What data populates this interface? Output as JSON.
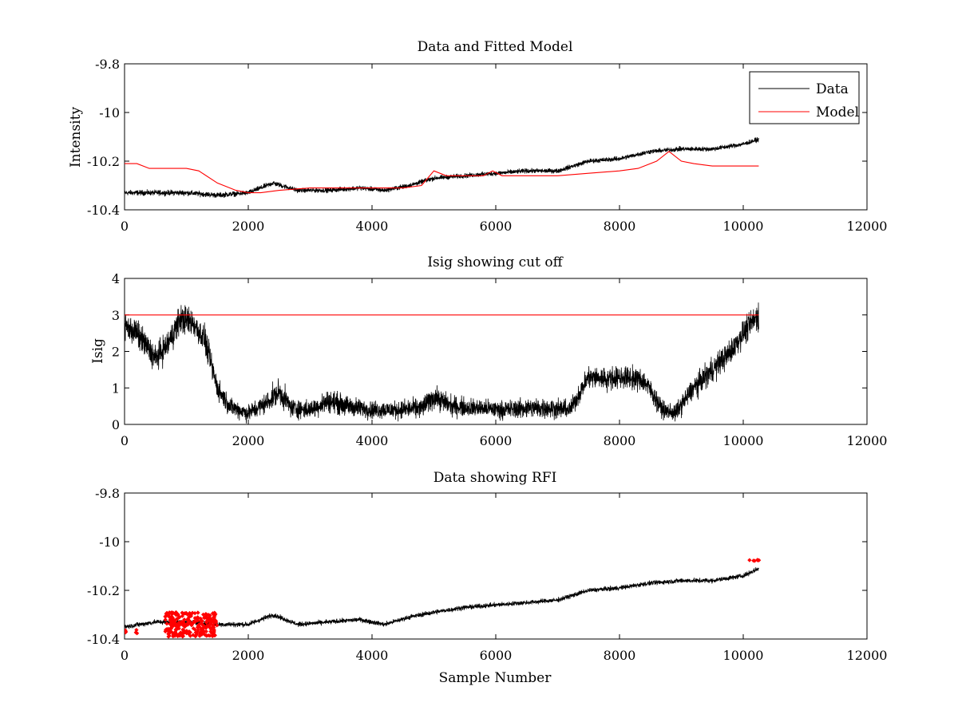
{
  "figure": {
    "xlabel": "Sample Number"
  },
  "chart_data": [
    {
      "type": "line",
      "title": "Data and Fitted Model",
      "xlabel": "",
      "ylabel": "Intensity",
      "xlim": [
        0,
        12000
      ],
      "ylim": [
        -10.4,
        -9.8
      ],
      "xticks": [
        0,
        2000,
        4000,
        6000,
        8000,
        10000,
        12000
      ],
      "yticks": [
        -10.4,
        -10.2,
        -10,
        -9.8
      ],
      "xtick_labels": [
        "0",
        "2000",
        "4000",
        "6000",
        "8000",
        "10000",
        "12000"
      ],
      "ytick_labels": [
        "-10.4",
        "-10.2",
        "-10",
        "-9.8"
      ],
      "legend_position": "top-right",
      "series": [
        {
          "name": "Data",
          "color": "#000000",
          "style": "noisy-line",
          "x": [
            0,
            500,
            1000,
            1500,
            2000,
            2400,
            2800,
            3300,
            3800,
            4200,
            4600,
            5000,
            5500,
            6000,
            6500,
            7000,
            7500,
            8000,
            8500,
            9000,
            9500,
            10000,
            10250
          ],
          "y": [
            -10.33,
            -10.33,
            -10.33,
            -10.34,
            -10.33,
            -10.29,
            -10.32,
            -10.32,
            -10.31,
            -10.32,
            -10.3,
            -10.27,
            -10.26,
            -10.25,
            -10.24,
            -10.24,
            -10.2,
            -10.19,
            -10.16,
            -10.15,
            -10.15,
            -10.13,
            -10.11
          ],
          "noise": [
            0.016,
            0.016,
            0.016,
            0.016,
            0.015,
            0.015,
            0.014,
            0.014,
            0.014,
            0.014,
            0.014,
            0.014,
            0.014,
            0.014,
            0.014,
            0.014,
            0.014,
            0.014,
            0.014,
            0.014,
            0.014,
            0.014,
            0.014
          ]
        },
        {
          "name": "Model",
          "color": "#ff0000",
          "style": "line",
          "x": [
            0,
            200,
            400,
            600,
            1000,
            1200,
            1500,
            1800,
            2000,
            2200,
            2500,
            3000,
            3500,
            4000,
            4500,
            4800,
            5000,
            5200,
            5500,
            5800,
            5950,
            6100,
            6500,
            7000,
            7500,
            8000,
            8300,
            8600,
            8800,
            9000,
            9200,
            9500,
            10000,
            10250
          ],
          "y": [
            -10.21,
            -10.21,
            -10.23,
            -10.23,
            -10.23,
            -10.24,
            -10.29,
            -10.32,
            -10.33,
            -10.33,
            -10.32,
            -10.31,
            -10.31,
            -10.31,
            -10.31,
            -10.3,
            -10.24,
            -10.26,
            -10.26,
            -10.26,
            -10.24,
            -10.26,
            -10.26,
            -10.26,
            -10.25,
            -10.24,
            -10.23,
            -10.2,
            -10.16,
            -10.2,
            -10.21,
            -10.22,
            -10.22,
            -10.22
          ]
        }
      ]
    },
    {
      "type": "line",
      "title": "Isig showing cut off",
      "xlabel": "",
      "ylabel": "Isig",
      "xlim": [
        0,
        12000
      ],
      "ylim": [
        0,
        4
      ],
      "xticks": [
        0,
        2000,
        4000,
        6000,
        8000,
        10000,
        12000
      ],
      "yticks": [
        0,
        1,
        2,
        3,
        4
      ],
      "xtick_labels": [
        "0",
        "2000",
        "4000",
        "6000",
        "8000",
        "10000",
        "12000"
      ],
      "ytick_labels": [
        "0",
        "1",
        "2",
        "3",
        "4"
      ],
      "series": [
        {
          "name": "Isig",
          "color": "#000000",
          "style": "noisy-line",
          "x": [
            0,
            200,
            500,
            700,
            900,
            1100,
            1300,
            1500,
            1700,
            2000,
            2300,
            2500,
            2700,
            3000,
            3300,
            3600,
            4000,
            4400,
            4800,
            5000,
            5300,
            5700,
            6100,
            6500,
            6900,
            7200,
            7500,
            7800,
            8100,
            8400,
            8700,
            8900,
            9200,
            9500,
            9800,
            10000,
            10250
          ],
          "y": [
            2.7,
            2.5,
            1.8,
            2.2,
            2.9,
            2.8,
            2.3,
            1.0,
            0.5,
            0.3,
            0.6,
            0.9,
            0.45,
            0.4,
            0.65,
            0.5,
            0.4,
            0.4,
            0.45,
            0.75,
            0.5,
            0.45,
            0.4,
            0.45,
            0.45,
            0.4,
            1.3,
            1.25,
            1.3,
            1.2,
            0.4,
            0.3,
            1.0,
            1.5,
            2.0,
            2.5,
            3.0
          ],
          "noise": [
            0.55,
            0.55,
            0.55,
            0.55,
            0.6,
            0.55,
            0.55,
            0.45,
            0.35,
            0.35,
            0.4,
            0.5,
            0.4,
            0.35,
            0.45,
            0.4,
            0.35,
            0.35,
            0.4,
            0.45,
            0.4,
            0.35,
            0.35,
            0.4,
            0.4,
            0.35,
            0.45,
            0.45,
            0.45,
            0.45,
            0.35,
            0.35,
            0.45,
            0.5,
            0.5,
            0.5,
            0.55
          ]
        },
        {
          "name": "Cut off",
          "color": "#ff0000",
          "style": "line",
          "x": [
            0,
            10250
          ],
          "y": [
            3,
            3
          ]
        }
      ]
    },
    {
      "type": "scatter",
      "title": "Data showing RFI",
      "xlabel": "Sample Number",
      "ylabel": "",
      "xlim": [
        0,
        12000
      ],
      "ylim": [
        -10.4,
        -9.8
      ],
      "xticks": [
        0,
        2000,
        4000,
        6000,
        8000,
        10000,
        12000
      ],
      "yticks": [
        -10.4,
        -10.2,
        -10,
        -9.8
      ],
      "xtick_labels": [
        "0",
        "2000",
        "4000",
        "6000",
        "8000",
        "10000",
        "12000"
      ],
      "ytick_labels": [
        "-10.4",
        "-10.2",
        "-10",
        "-9.8"
      ],
      "series": [
        {
          "name": "Data",
          "color": "#000000",
          "style": "noisy-line",
          "x": [
            0,
            500,
            1000,
            1500,
            2000,
            2400,
            2800,
            3300,
            3800,
            4200,
            4600,
            5000,
            5500,
            6000,
            6500,
            7000,
            7500,
            8000,
            8500,
            9000,
            9500,
            10000,
            10250
          ],
          "y": [
            -10.35,
            -10.33,
            -10.33,
            -10.34,
            -10.34,
            -10.3,
            -10.34,
            -10.33,
            -10.32,
            -10.34,
            -10.31,
            -10.29,
            -10.27,
            -10.26,
            -10.25,
            -10.24,
            -10.2,
            -10.19,
            -10.17,
            -10.16,
            -10.16,
            -10.14,
            -10.11
          ],
          "noise": [
            0.015,
            0.015,
            0.015,
            0.015,
            0.015,
            0.015,
            0.014,
            0.014,
            0.014,
            0.014,
            0.014,
            0.014,
            0.014,
            0.014,
            0.014,
            0.014,
            0.014,
            0.014,
            0.014,
            0.014,
            0.014,
            0.014,
            0.014
          ]
        },
        {
          "name": "RFI",
          "color": "#ff0000",
          "style": "markers",
          "clusters": [
            {
              "x_range": [
                650,
                1500
              ],
              "y_center": -10.34,
              "y_spread": 0.05,
              "count": 260
            },
            {
              "x_range": [
                0,
                60
              ],
              "y_center": -10.37,
              "y_spread": 0.01,
              "count": 4
            },
            {
              "x_range": [
                150,
                300
              ],
              "y_center": -10.37,
              "y_spread": 0.01,
              "count": 3
            },
            {
              "x_range": [
                10100,
                10260
              ],
              "y_center": -10.076,
              "y_spread": 0.003,
              "count": 6
            }
          ]
        }
      ]
    }
  ]
}
